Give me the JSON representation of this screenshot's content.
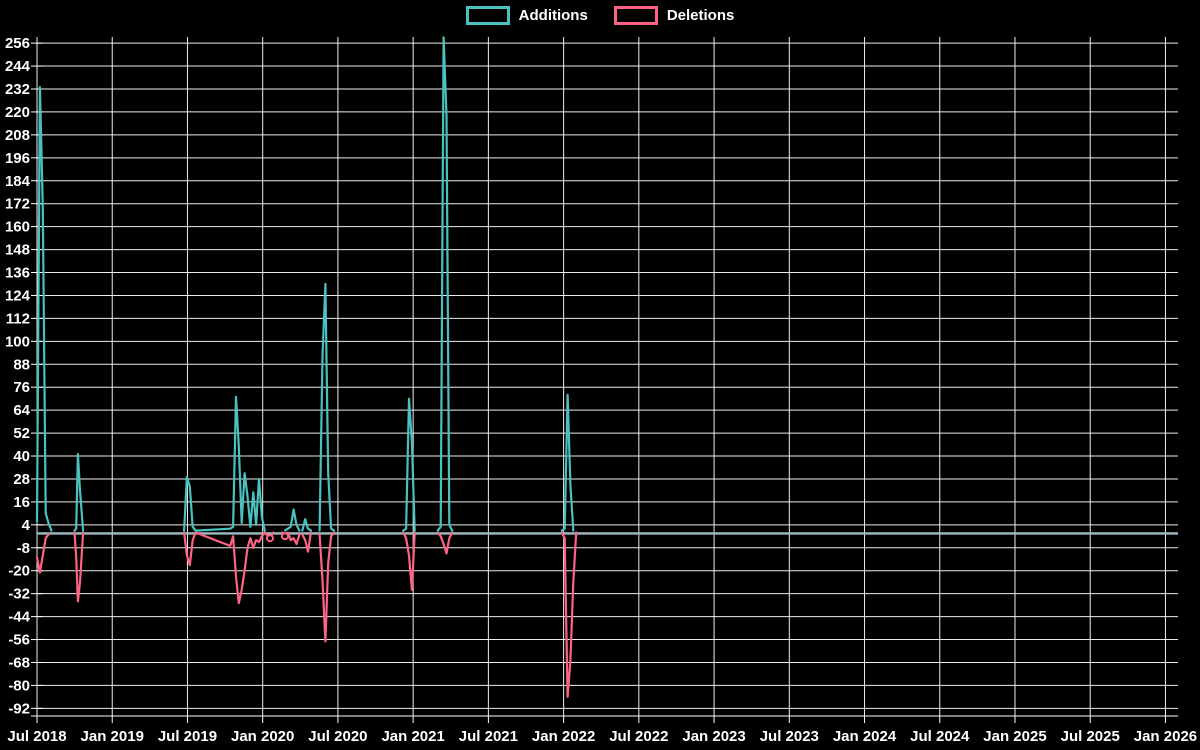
{
  "legend": {
    "additions_label": "Additions",
    "deletions_label": "Deletions"
  },
  "chart_data": {
    "type": "line",
    "title": "",
    "legend_entries": [
      "Additions",
      "Deletions"
    ],
    "legend_position": "top-center",
    "grid": true,
    "background": "#000000",
    "colors": {
      "additions": "#4bc0c0",
      "deletions": "#ff6384",
      "flat_overlap_line": "#9fbdc5",
      "grid_line": "#eeeeee",
      "axis_line": "#ffffff",
      "tick_text": "#ffffff"
    },
    "x_axis": {
      "unit": "weeks since Jul 2018 (week 0 = Jul 2018, 26.09 weeks per half-year tick)",
      "tick_labels": [
        "Jul 2018",
        "Jan 2019",
        "Jul 2019",
        "Jan 2020",
        "Jul 2020",
        "Jan 2021",
        "Jul 2021",
        "Jan 2022",
        "Jul 2022",
        "Jan 2023",
        "Jul 2023",
        "Jan 2024",
        "Jul 2024",
        "Jan 2025",
        "Jul 2025",
        "Jan 2026"
      ]
    },
    "y_axis": {
      "tick_step": 12,
      "tick_labels": [
        "256",
        "244",
        "232",
        "220",
        "208",
        "196",
        "184",
        "172",
        "160",
        "148",
        "136",
        "124",
        "112",
        "100",
        "88",
        "76",
        "64",
        "52",
        "40",
        "28",
        "16",
        "4",
        "-8",
        "-20",
        "-32",
        "-44",
        "-56",
        "-68",
        "-80",
        "-92"
      ],
      "tick_values": [
        256,
        244,
        232,
        220,
        208,
        196,
        184,
        172,
        160,
        148,
        136,
        124,
        112,
        100,
        88,
        76,
        64,
        52,
        40,
        28,
        16,
        4,
        -8,
        -20,
        -32,
        -44,
        -56,
        -68,
        -80,
        -92
      ],
      "plot_min": -96,
      "plot_max": 259.2
    },
    "series": [
      {
        "name": "Additions",
        "color": "#4bc0c0",
        "points": [
          [
            0,
            6
          ],
          [
            1,
            233
          ],
          [
            2,
            170
          ],
          [
            3,
            10
          ],
          [
            4,
            5
          ],
          [
            5,
            1
          ],
          [
            13,
            1
          ],
          [
            13.6,
            2
          ],
          [
            14.2,
            41
          ],
          [
            14.9,
            22
          ],
          [
            16,
            1
          ],
          [
            51,
            1
          ],
          [
            52,
            29
          ],
          [
            53,
            24
          ],
          [
            54,
            3
          ],
          [
            55,
            1
          ],
          [
            67,
            2
          ],
          [
            68,
            3
          ],
          [
            69,
            71
          ],
          [
            70,
            45
          ],
          [
            71,
            5
          ],
          [
            72,
            31
          ],
          [
            73,
            19
          ],
          [
            74,
            3
          ],
          [
            75,
            21
          ],
          [
            76,
            4
          ],
          [
            77,
            28
          ],
          [
            78,
            8
          ],
          [
            79,
            1
          ],
          [
            85,
            1
          ],
          [
            86,
            1
          ],
          [
            88,
            3
          ],
          [
            89,
            12
          ],
          [
            90,
            4
          ],
          [
            91,
            1
          ],
          [
            92,
            1
          ],
          [
            93,
            7
          ],
          [
            94,
            2
          ],
          [
            95,
            1
          ],
          [
            98,
            1
          ],
          [
            99,
            92
          ],
          [
            100,
            130
          ],
          [
            101,
            31
          ],
          [
            102,
            2
          ],
          [
            103,
            1
          ],
          [
            127,
            1
          ],
          [
            128,
            2
          ],
          [
            129,
            70
          ],
          [
            130,
            47
          ],
          [
            131,
            1
          ],
          [
            139,
            1
          ],
          [
            140,
            3
          ],
          [
            141,
            259
          ],
          [
            142,
            218
          ],
          [
            143,
            4
          ],
          [
            144,
            1
          ],
          [
            182,
            1
          ],
          [
            183,
            2
          ],
          [
            184,
            72
          ],
          [
            185,
            25
          ],
          [
            186,
            1
          ],
          [
            187,
            1
          ],
          [
            395.8,
            1
          ]
        ]
      },
      {
        "name": "Deletions",
        "color": "#ff6384",
        "points": [
          [
            0,
            -13
          ],
          [
            1,
            -21
          ],
          [
            2,
            -12
          ],
          [
            3,
            -3
          ],
          [
            4,
            -1
          ],
          [
            5,
            0
          ],
          [
            13,
            0
          ],
          [
            13.6,
            -13
          ],
          [
            14.2,
            -36
          ],
          [
            14.9,
            -26
          ],
          [
            16,
            0
          ],
          [
            51,
            0
          ],
          [
            52,
            -12
          ],
          [
            53,
            -17
          ],
          [
            54,
            -4
          ],
          [
            55,
            0
          ],
          [
            67,
            -7
          ],
          [
            68,
            -2
          ],
          [
            69,
            -23
          ],
          [
            70,
            -37
          ],
          [
            71,
            -30
          ],
          [
            72,
            -20
          ],
          [
            73,
            -8
          ],
          [
            74,
            -3
          ],
          [
            75,
            -8
          ],
          [
            76,
            -4
          ],
          [
            77,
            -5
          ],
          [
            78,
            -2
          ],
          [
            79,
            0
          ],
          [
            80.8,
            -3
          ],
          [
            82,
            0
          ],
          [
            85,
            0
          ],
          [
            86,
            -2
          ],
          [
            87,
            0
          ],
          [
            88,
            -4
          ],
          [
            89,
            -3
          ],
          [
            90,
            -6
          ],
          [
            91,
            -1
          ],
          [
            92,
            -1
          ],
          [
            93,
            -4
          ],
          [
            94,
            -10
          ],
          [
            95,
            0
          ],
          [
            98,
            -1
          ],
          [
            99,
            -25
          ],
          [
            100,
            -57
          ],
          [
            101,
            -16
          ],
          [
            102,
            -2
          ],
          [
            103,
            0
          ],
          [
            127,
            0
          ],
          [
            128,
            -3
          ],
          [
            129,
            -12
          ],
          [
            130,
            -30
          ],
          [
            131,
            0
          ],
          [
            139,
            0
          ],
          [
            140,
            -2
          ],
          [
            141,
            -6
          ],
          [
            142,
            -11
          ],
          [
            143,
            -3
          ],
          [
            144,
            0
          ],
          [
            182,
            0
          ],
          [
            183,
            -3
          ],
          [
            184,
            -86
          ],
          [
            185,
            -67
          ],
          [
            186,
            -26
          ],
          [
            187,
            0
          ],
          [
            395.8,
            0
          ]
        ]
      }
    ],
    "visible_point_markers": [
      {
        "series": "Deletions",
        "week": 80.8,
        "value": -3
      },
      {
        "series": "Deletions",
        "week": 86,
        "value": -2
      }
    ]
  }
}
